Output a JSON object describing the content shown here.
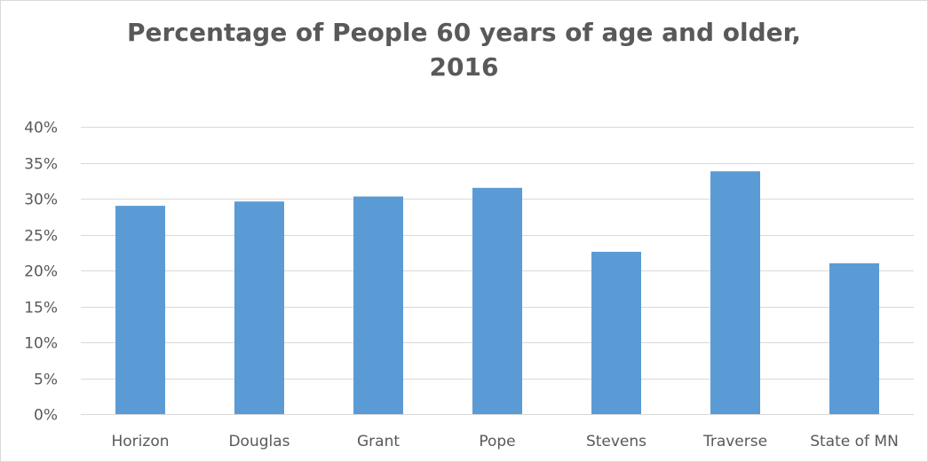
{
  "chart_data": {
    "type": "bar",
    "title_line1": "Percentage of People 60 years of age and older,",
    "title_line2": "2016",
    "xlabel": "",
    "ylabel": "",
    "categories": [
      "Horizon",
      "Douglas",
      "Grant",
      "Pope",
      "Stevens",
      "Traverse",
      "State of MN"
    ],
    "values": [
      0.29,
      0.296,
      0.303,
      0.315,
      0.226,
      0.338,
      0.21
    ],
    "ylim": [
      0,
      0.4
    ],
    "yticks": [
      0,
      0.05,
      0.1,
      0.15,
      0.2,
      0.25,
      0.3,
      0.35,
      0.4
    ],
    "ytick_labels": [
      "0%",
      "5%",
      "10%",
      "15%",
      "20%",
      "25%",
      "30%",
      "35%",
      "40%"
    ],
    "grid": true,
    "legend": "none",
    "colors": {
      "bar": "#5b9bd5",
      "grid": "#d9d9d9",
      "text": "#595959"
    }
  }
}
